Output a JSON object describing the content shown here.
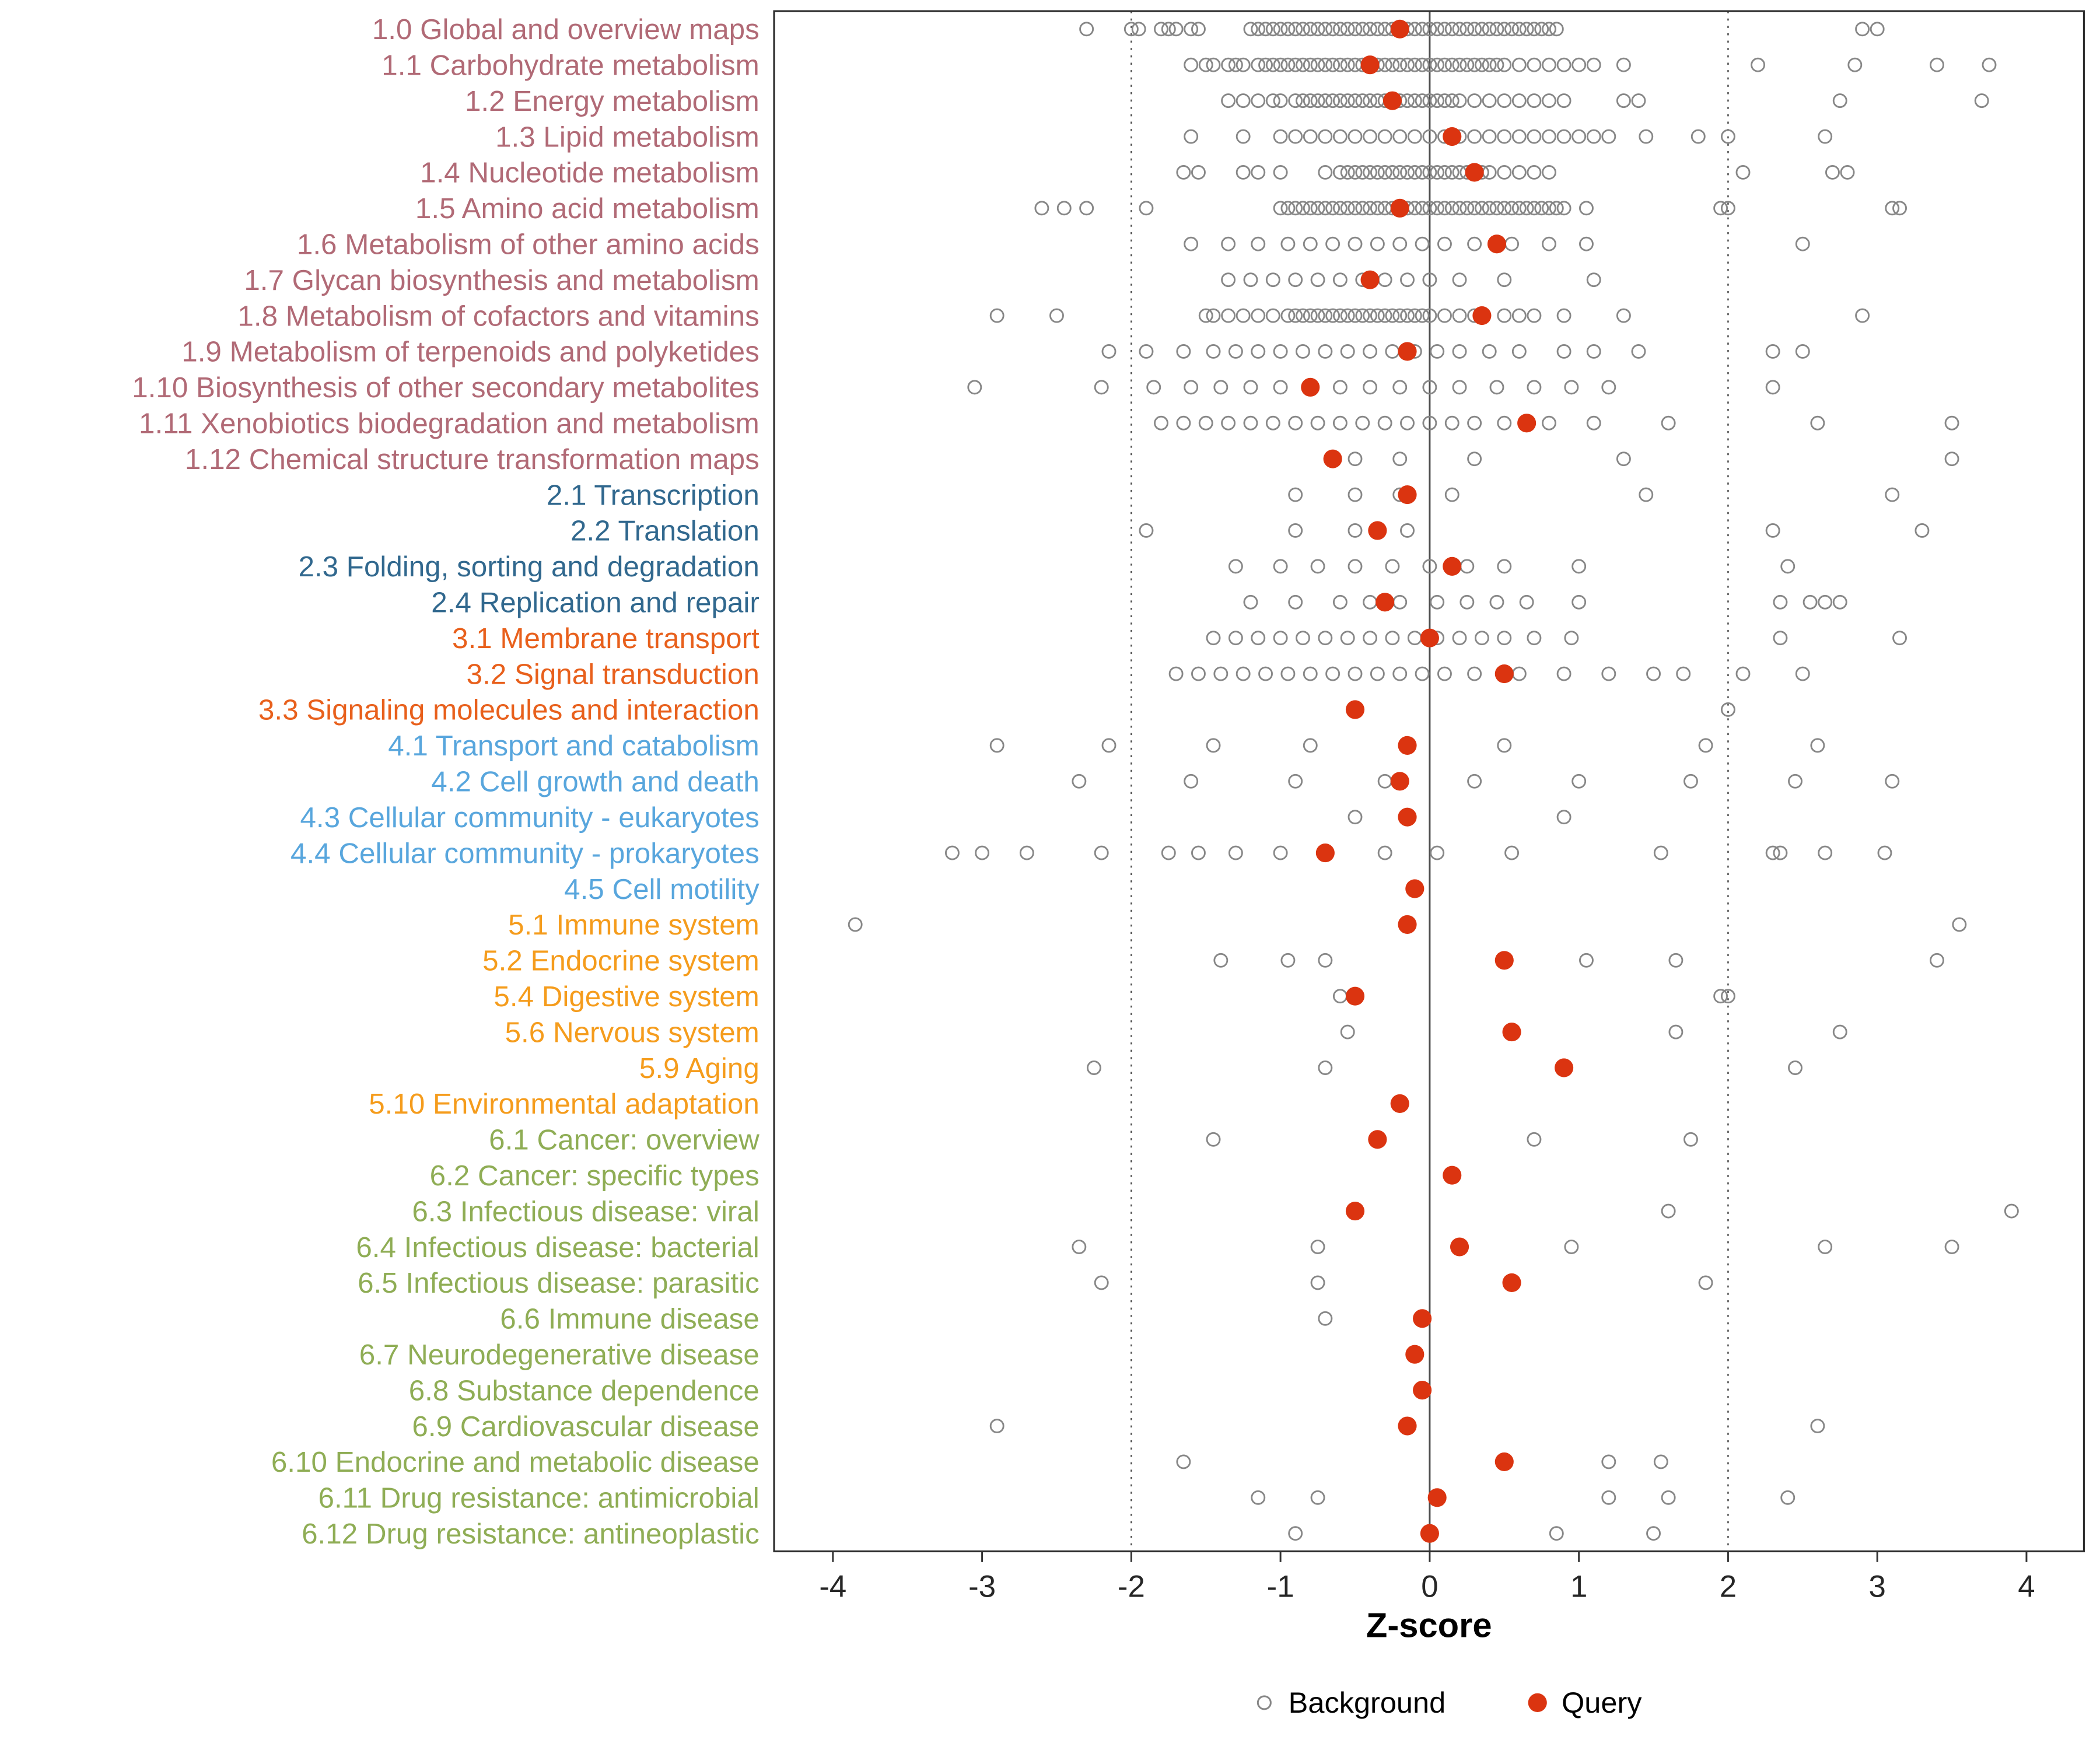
{
  "chart_data": {
    "type": "scatter",
    "subtype": "strip-dot-plot",
    "title": "",
    "xlabel": "Z-score",
    "xlim": [
      -4.4,
      4.4
    ],
    "x_ticks": [
      -4,
      -3,
      -2,
      -1,
      0,
      1,
      2,
      3,
      4
    ],
    "reference_lines": {
      "solid": [
        0
      ],
      "dotted": [
        -2,
        2
      ]
    },
    "grid": "off",
    "legend": {
      "position": "bottom",
      "items": [
        {
          "label": "Background",
          "type": "open-circle"
        },
        {
          "label": "Query",
          "type": "filled-circle"
        }
      ]
    },
    "colors": {
      "group_1": "#B16A76",
      "group_2": "#31688E",
      "group_3": "#E8601C",
      "group_4": "#58A6DD",
      "group_5": "#F59C1C",
      "group_6": "#8FAD55",
      "background_point": "#878787",
      "query_point": "#DB3410",
      "axis_text": "#262626",
      "reference_line": "#4D4D4D",
      "panel_border": "#2E2E2E"
    },
    "rows": [
      {
        "label": "1.0 Global and overview maps",
        "group": "1",
        "query": -0.2,
        "background": [
          -2.3,
          -2.0,
          -1.95,
          -1.8,
          -1.75,
          -1.7,
          -1.6,
          -1.55,
          -1.2,
          -1.15,
          -1.1,
          -1.05,
          -1.0,
          -0.95,
          -0.9,
          -0.85,
          -0.8,
          -0.75,
          -0.7,
          -0.65,
          -0.6,
          -0.55,
          -0.5,
          -0.45,
          -0.4,
          -0.35,
          -0.3,
          -0.25,
          -0.2,
          -0.15,
          -0.1,
          -0.05,
          0,
          0.05,
          0.1,
          0.15,
          0.2,
          0.25,
          0.3,
          0.35,
          0.4,
          0.45,
          0.5,
          0.55,
          0.6,
          0.65,
          0.7,
          0.75,
          0.8,
          0.85,
          2.9,
          3.0
        ]
      },
      {
        "label": "1.1 Carbohydrate metabolism",
        "group": "1",
        "query": -0.4,
        "background": [
          -1.6,
          -1.5,
          -1.45,
          -1.35,
          -1.3,
          -1.25,
          -1.15,
          -1.1,
          -1.05,
          -1.0,
          -0.95,
          -0.9,
          -0.85,
          -0.8,
          -0.75,
          -0.7,
          -0.65,
          -0.6,
          -0.55,
          -0.5,
          -0.45,
          -0.4,
          -0.35,
          -0.3,
          -0.25,
          -0.2,
          -0.15,
          -0.1,
          -0.05,
          0,
          0.05,
          0.1,
          0.15,
          0.2,
          0.25,
          0.3,
          0.35,
          0.4,
          0.45,
          0.5,
          0.6,
          0.7,
          0.8,
          0.9,
          1.0,
          1.1,
          1.3,
          2.2,
          2.85,
          3.4,
          3.75
        ]
      },
      {
        "label": "1.2 Energy metabolism",
        "group": "1",
        "query": -0.25,
        "background": [
          -1.35,
          -1.25,
          -1.15,
          -1.05,
          -1.0,
          -0.9,
          -0.85,
          -0.8,
          -0.75,
          -0.7,
          -0.65,
          -0.6,
          -0.55,
          -0.5,
          -0.45,
          -0.4,
          -0.35,
          -0.3,
          -0.25,
          -0.2,
          -0.15,
          -0.1,
          -0.05,
          0,
          0.05,
          0.1,
          0.15,
          0.2,
          0.3,
          0.4,
          0.5,
          0.6,
          0.7,
          0.8,
          0.9,
          1.3,
          1.4,
          2.75,
          3.7
        ]
      },
      {
        "label": "1.3 Lipid metabolism",
        "group": "1",
        "query": 0.15,
        "background": [
          -1.6,
          -1.25,
          -1.0,
          -0.9,
          -0.8,
          -0.7,
          -0.6,
          -0.5,
          -0.4,
          -0.3,
          -0.2,
          -0.1,
          0,
          0.1,
          0.2,
          0.3,
          0.4,
          0.5,
          0.6,
          0.7,
          0.8,
          0.9,
          1.0,
          1.1,
          1.2,
          1.45,
          1.8,
          2.0,
          2.65
        ]
      },
      {
        "label": "1.4 Nucleotide metabolism",
        "group": "1",
        "query": 0.3,
        "background": [
          -1.65,
          -1.55,
          -1.25,
          -1.15,
          -1.0,
          -0.7,
          -0.6,
          -0.55,
          -0.5,
          -0.45,
          -0.4,
          -0.35,
          -0.3,
          -0.25,
          -0.2,
          -0.15,
          -0.1,
          -0.05,
          0,
          0.05,
          0.1,
          0.15,
          0.2,
          0.25,
          0.3,
          0.35,
          0.4,
          0.5,
          0.6,
          0.7,
          0.8,
          2.1,
          2.7,
          2.8
        ]
      },
      {
        "label": "1.5 Amino acid metabolism",
        "group": "1",
        "query": -0.2,
        "background": [
          -2.6,
          -2.45,
          -2.3,
          -1.9,
          -1.0,
          -0.95,
          -0.9,
          -0.85,
          -0.8,
          -0.75,
          -0.7,
          -0.65,
          -0.6,
          -0.55,
          -0.5,
          -0.45,
          -0.4,
          -0.35,
          -0.3,
          -0.25,
          -0.2,
          -0.15,
          -0.1,
          -0.05,
          0,
          0.05,
          0.1,
          0.15,
          0.2,
          0.25,
          0.3,
          0.35,
          0.4,
          0.45,
          0.5,
          0.55,
          0.6,
          0.65,
          0.7,
          0.75,
          0.8,
          0.85,
          0.9,
          1.05,
          1.95,
          2.0,
          3.1,
          3.15
        ]
      },
      {
        "label": "1.6 Metabolism of other amino acids",
        "group": "1",
        "query": 0.45,
        "background": [
          -1.6,
          -1.35,
          -1.15,
          -0.95,
          -0.8,
          -0.65,
          -0.5,
          -0.35,
          -0.2,
          -0.05,
          0.1,
          0.3,
          0.55,
          0.8,
          1.05,
          2.5
        ]
      },
      {
        "label": "1.7 Glycan biosynthesis and metabolism",
        "group": "1",
        "query": -0.4,
        "background": [
          -1.35,
          -1.2,
          -1.05,
          -0.9,
          -0.75,
          -0.6,
          -0.45,
          -0.3,
          -0.15,
          0,
          0.2,
          0.5,
          1.1
        ]
      },
      {
        "label": "1.8 Metabolism of cofactors and vitamins",
        "group": "1",
        "query": 0.35,
        "background": [
          -2.9,
          -2.5,
          -1.5,
          -1.45,
          -1.35,
          -1.25,
          -1.15,
          -1.05,
          -0.95,
          -0.9,
          -0.85,
          -0.8,
          -0.75,
          -0.7,
          -0.65,
          -0.6,
          -0.55,
          -0.5,
          -0.45,
          -0.4,
          -0.35,
          -0.3,
          -0.25,
          -0.2,
          -0.15,
          -0.1,
          -0.05,
          0,
          0.1,
          0.2,
          0.3,
          0.5,
          0.6,
          0.7,
          0.9,
          1.3,
          2.9
        ]
      },
      {
        "label": "1.9 Metabolism of terpenoids and polyketides",
        "group": "1",
        "query": -0.15,
        "background": [
          -2.15,
          -1.9,
          -1.65,
          -1.45,
          -1.3,
          -1.15,
          -1.0,
          -0.85,
          -0.7,
          -0.55,
          -0.4,
          -0.25,
          -0.1,
          0.05,
          0.2,
          0.4,
          0.6,
          0.9,
          1.1,
          1.4,
          2.3,
          2.5
        ]
      },
      {
        "label": "1.10 Biosynthesis of other secondary metabolites",
        "group": "1",
        "query": -0.8,
        "background": [
          -3.05,
          -2.2,
          -1.85,
          -1.6,
          -1.4,
          -1.2,
          -1.0,
          -0.8,
          -0.6,
          -0.4,
          -0.2,
          0,
          0.2,
          0.45,
          0.7,
          0.95,
          1.2,
          2.3
        ]
      },
      {
        "label": "1.11 Xenobiotics biodegradation and metabolism",
        "group": "1",
        "query": 0.65,
        "background": [
          -1.8,
          -1.65,
          -1.5,
          -1.35,
          -1.2,
          -1.05,
          -0.9,
          -0.75,
          -0.6,
          -0.45,
          -0.3,
          -0.15,
          0,
          0.15,
          0.3,
          0.5,
          0.8,
          1.1,
          1.6,
          2.6,
          3.5
        ]
      },
      {
        "label": "1.12 Chemical structure transformation maps",
        "group": "1",
        "query": -0.65,
        "background": [
          -0.5,
          -0.2,
          0.3,
          1.3,
          3.5
        ]
      },
      {
        "label": "2.1 Transcription",
        "group": "2",
        "query": -0.15,
        "background": [
          -0.9,
          -0.5,
          -0.2,
          0.15,
          1.45,
          3.1
        ]
      },
      {
        "label": "2.2 Translation",
        "group": "2",
        "query": -0.35,
        "background": [
          -1.9,
          -0.9,
          -0.5,
          -0.15,
          2.3,
          3.3
        ]
      },
      {
        "label": "2.3 Folding, sorting and degradation",
        "group": "2",
        "query": 0.15,
        "background": [
          -1.3,
          -1.0,
          -0.75,
          -0.5,
          -0.25,
          0,
          0.25,
          0.5,
          1.0,
          2.4
        ]
      },
      {
        "label": "2.4 Replication and repair",
        "group": "2",
        "query": -0.3,
        "background": [
          -1.2,
          -0.9,
          -0.6,
          -0.4,
          -0.2,
          0.05,
          0.25,
          0.45,
          0.65,
          1.0,
          2.35,
          2.55,
          2.65,
          2.75
        ]
      },
      {
        "label": "3.1 Membrane transport",
        "group": "3",
        "query": 0.0,
        "background": [
          -1.45,
          -1.3,
          -1.15,
          -1.0,
          -0.85,
          -0.7,
          -0.55,
          -0.4,
          -0.25,
          -0.1,
          0.05,
          0.2,
          0.35,
          0.5,
          0.7,
          0.95,
          2.35,
          3.15
        ]
      },
      {
        "label": "3.2 Signal transduction",
        "group": "3",
        "query": 0.5,
        "background": [
          -1.7,
          -1.55,
          -1.4,
          -1.25,
          -1.1,
          -0.95,
          -0.8,
          -0.65,
          -0.5,
          -0.35,
          -0.2,
          -0.05,
          0.1,
          0.3,
          0.6,
          0.9,
          1.2,
          1.5,
          1.7,
          2.1,
          2.5
        ]
      },
      {
        "label": "3.3 Signaling molecules and interaction",
        "group": "3",
        "query": -0.5,
        "background": [
          2.0
        ]
      },
      {
        "label": "4.1 Transport and catabolism",
        "group": "4",
        "query": -0.15,
        "background": [
          -2.9,
          -2.15,
          -1.45,
          -0.8,
          0.5,
          1.85,
          2.6
        ]
      },
      {
        "label": "4.2 Cell growth and death",
        "group": "4",
        "query": -0.2,
        "background": [
          -2.35,
          -1.6,
          -0.9,
          -0.3,
          0.3,
          1.0,
          1.75,
          2.45,
          3.1
        ]
      },
      {
        "label": "4.3 Cellular community - eukaryotes",
        "group": "4",
        "query": -0.15,
        "background": [
          -0.5,
          0.9
        ]
      },
      {
        "label": "4.4 Cellular community - prokaryotes",
        "group": "4",
        "query": -0.7,
        "background": [
          -3.2,
          -3.0,
          -2.7,
          -2.2,
          -1.75,
          -1.55,
          -1.3,
          -1.0,
          -0.3,
          0.05,
          0.55,
          1.55,
          2.3,
          2.35,
          2.65,
          3.05
        ]
      },
      {
        "label": "4.5 Cell motility",
        "group": "4",
        "query": -0.1,
        "background": []
      },
      {
        "label": "5.1 Immune system",
        "group": "5",
        "query": -0.15,
        "background": [
          -3.85,
          3.55
        ]
      },
      {
        "label": "5.2 Endocrine system",
        "group": "5",
        "query": 0.5,
        "background": [
          -1.4,
          -0.95,
          -0.7,
          1.05,
          1.65,
          3.4
        ]
      },
      {
        "label": "5.4 Digestive system",
        "group": "5",
        "query": -0.5,
        "background": [
          -0.6,
          1.95,
          2.0
        ]
      },
      {
        "label": "5.6 Nervous system",
        "group": "5",
        "query": 0.55,
        "background": [
          -0.55,
          1.65,
          2.75
        ]
      },
      {
        "label": "5.9 Aging",
        "group": "5",
        "query": 0.9,
        "background": [
          -2.25,
          -0.7,
          2.45
        ]
      },
      {
        "label": "5.10 Environmental adaptation",
        "group": "5",
        "query": -0.2,
        "background": []
      },
      {
        "label": "6.1 Cancer: overview",
        "group": "6",
        "query": -0.35,
        "background": [
          -1.45,
          0.7,
          1.75
        ]
      },
      {
        "label": "6.2 Cancer: specific types",
        "group": "6",
        "query": 0.15,
        "background": []
      },
      {
        "label": "6.3 Infectious disease: viral",
        "group": "6",
        "query": -0.5,
        "background": [
          1.6,
          3.9
        ]
      },
      {
        "label": "6.4 Infectious disease: bacterial",
        "group": "6",
        "query": 0.2,
        "background": [
          -2.35,
          -0.75,
          0.95,
          2.65,
          3.5
        ]
      },
      {
        "label": "6.5 Infectious disease: parasitic",
        "group": "6",
        "query": 0.55,
        "background": [
          -2.2,
          -0.75,
          1.85
        ]
      },
      {
        "label": "6.6 Immune disease",
        "group": "6",
        "query": -0.05,
        "background": [
          -0.7
        ]
      },
      {
        "label": "6.7 Neurodegenerative disease",
        "group": "6",
        "query": -0.1,
        "background": []
      },
      {
        "label": "6.8 Substance dependence",
        "group": "6",
        "query": -0.05,
        "background": []
      },
      {
        "label": "6.9 Cardiovascular disease",
        "group": "6",
        "query": -0.15,
        "background": [
          -2.9,
          2.6
        ]
      },
      {
        "label": "6.10 Endocrine and metabolic disease",
        "group": "6",
        "query": 0.5,
        "background": [
          -1.65,
          1.2,
          1.55
        ]
      },
      {
        "label": "6.11 Drug resistance: antimicrobial",
        "group": "6",
        "query": 0.05,
        "background": [
          -1.15,
          -0.75,
          1.2,
          1.6,
          2.4
        ]
      },
      {
        "label": "6.12 Drug resistance: antineoplastic",
        "group": "6",
        "query": 0.0,
        "background": [
          -0.9,
          0.85,
          1.5
        ]
      }
    ]
  }
}
